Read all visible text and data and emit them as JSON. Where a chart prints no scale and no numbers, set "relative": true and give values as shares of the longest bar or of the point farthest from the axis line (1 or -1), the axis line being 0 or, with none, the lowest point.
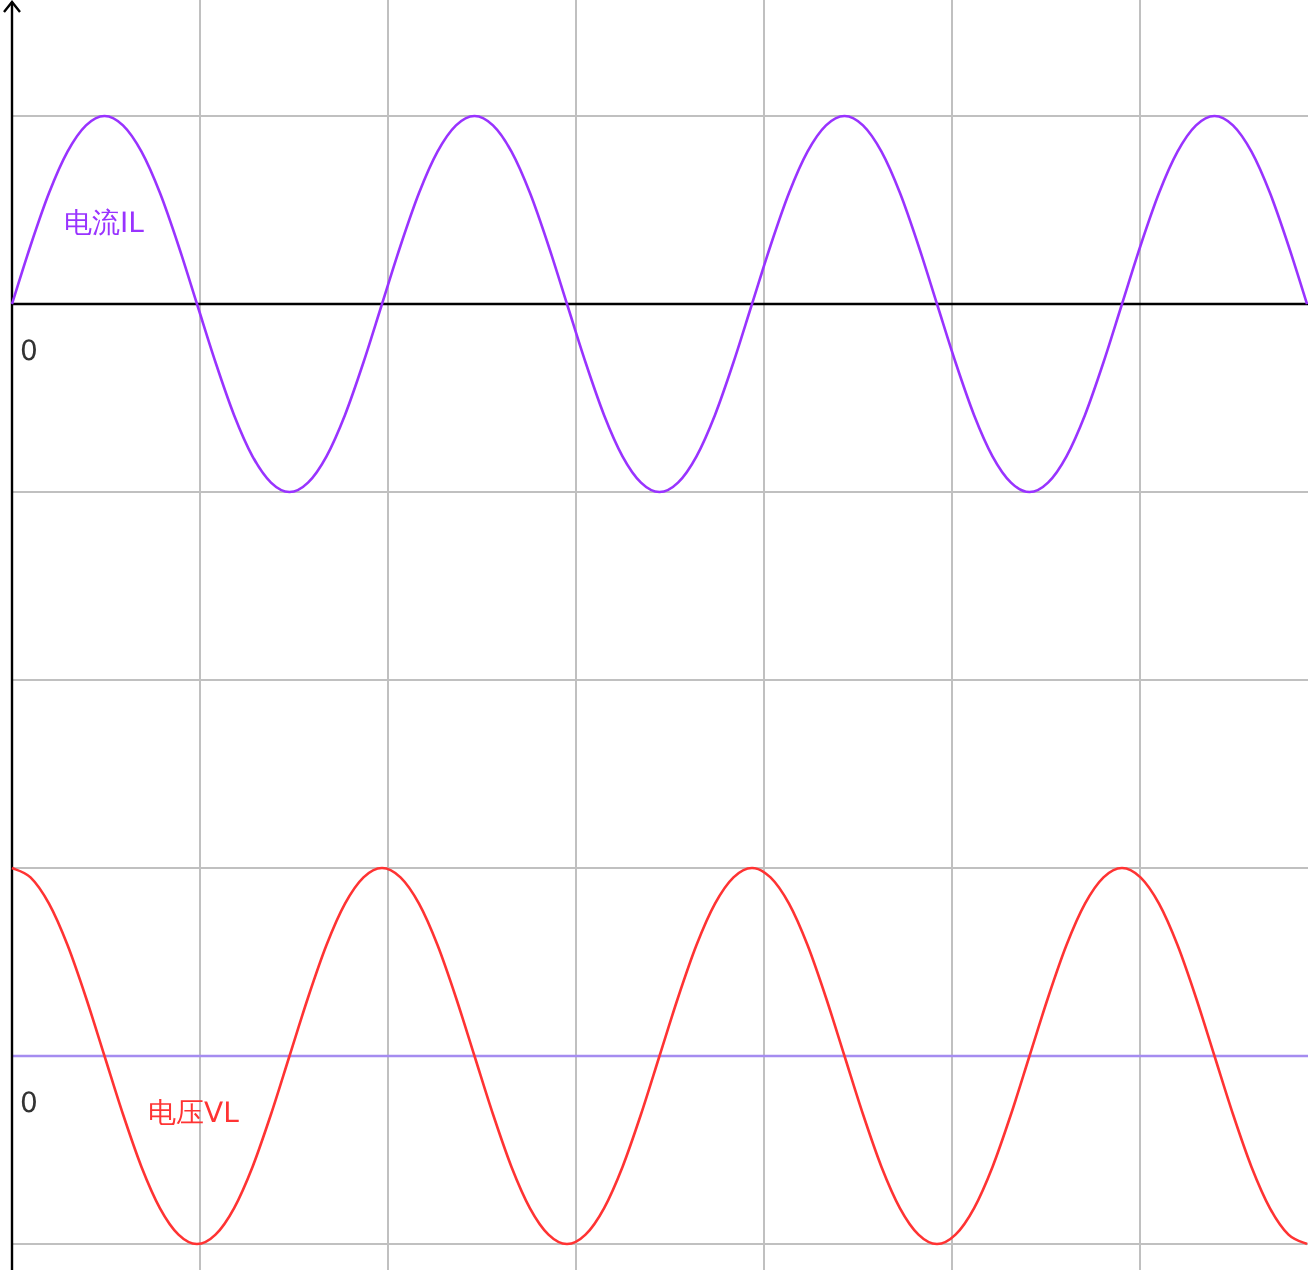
{
  "chart_data": [
    {
      "type": "line",
      "relative": true,
      "grid": true,
      "annotations": [
        "0"
      ],
      "categories": [
        null,
        null,
        null,
        null,
        null,
        null,
        null,
        null,
        null,
        null,
        null,
        null,
        null,
        null,
        null,
        null,
        null,
        null,
        null,
        null,
        null,
        null,
        null,
        null,
        null,
        null,
        null,
        null,
        null,
        null,
        null,
        null,
        null,
        null,
        null,
        null,
        null,
        null,
        null,
        null,
        null,
        null,
        null,
        null,
        null,
        null,
        null,
        null,
        null,
        null,
        null,
        null,
        null,
        null,
        null,
        null,
        null,
        null,
        null,
        null,
        null,
        null,
        null,
        null,
        null,
        null,
        null,
        null,
        null,
        null,
        null
      ],
      "series": [
        {
          "name": "电流IL",
          "color": "#9933ff",
          "values": [
            0,
            0.31,
            0.59,
            0.81,
            0.95,
            1,
            0.95,
            0.81,
            0.59,
            0.31,
            0,
            -0.31,
            -0.59,
            -0.81,
            -0.95,
            -1,
            -0.95,
            -0.81,
            -0.59,
            -0.31,
            0,
            0.31,
            0.59,
            0.81,
            0.95,
            1,
            0.95,
            0.81,
            0.59,
            0.31,
            0,
            -0.31,
            -0.59,
            -0.81,
            -0.95,
            -1,
            -0.95,
            -0.81,
            -0.59,
            -0.31,
            0,
            0.31,
            0.59,
            0.81,
            0.95,
            1,
            0.95,
            0.81,
            0.59,
            0.31,
            0,
            -0.31,
            -0.59,
            -0.81,
            -0.95,
            -1,
            -0.95,
            -0.81,
            -0.59,
            -0.31,
            0,
            0.31,
            0.59,
            0.81,
            0.95,
            1,
            0.95,
            0.81,
            0.59,
            0.31,
            0
          ]
        }
      ]
    },
    {
      "type": "line",
      "relative": true,
      "grid": true,
      "annotations": [
        "0"
      ],
      "ref_lines": [
        {
          "axis": "y",
          "value": 0,
          "color": "#a58cf0"
        }
      ],
      "categories": [
        null,
        null,
        null,
        null,
        null,
        null,
        null,
        null,
        null,
        null,
        null,
        null,
        null,
        null,
        null,
        null,
        null,
        null,
        null,
        null,
        null,
        null,
        null,
        null,
        null,
        null,
        null,
        null,
        null,
        null,
        null,
        null,
        null,
        null,
        null,
        null,
        null,
        null,
        null,
        null,
        null,
        null,
        null,
        null,
        null,
        null,
        null,
        null,
        null,
        null,
        null,
        null,
        null,
        null,
        null,
        null,
        null,
        null,
        null,
        null,
        null,
        null,
        null,
        null,
        null,
        null,
        null,
        null,
        null,
        null,
        null
      ],
      "series": [
        {
          "name": "电压VL",
          "color": "#ff3333",
          "values": [
            1,
            0.95,
            0.81,
            0.59,
            0.31,
            0,
            -0.31,
            -0.59,
            -0.81,
            -0.95,
            -1,
            -0.95,
            -0.81,
            -0.59,
            -0.31,
            0,
            0.31,
            0.59,
            0.81,
            0.95,
            1,
            0.95,
            0.81,
            0.59,
            0.31,
            0,
            -0.31,
            -0.59,
            -0.81,
            -0.95,
            -1,
            -0.95,
            -0.81,
            -0.59,
            -0.31,
            0,
            0.31,
            0.59,
            0.81,
            0.95,
            1,
            0.95,
            0.81,
            0.59,
            0.31,
            0,
            -0.31,
            -0.59,
            -0.81,
            -0.95,
            -1,
            -0.95,
            -0.81,
            -0.59,
            -0.31,
            0,
            0.31,
            0.59,
            0.81,
            0.95,
            1,
            0.95,
            0.81,
            0.59,
            0.31,
            0,
            -0.31,
            -0.59,
            -0.81,
            -0.95,
            -1
          ]
        }
      ]
    }
  ]
}
